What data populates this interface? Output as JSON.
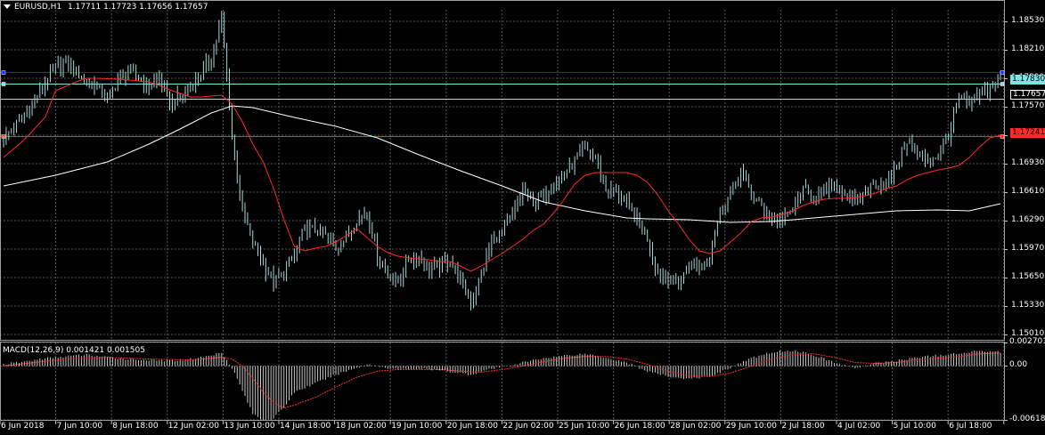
{
  "main_header": {
    "symbol": "EURUSD,H1",
    "quote": "1.17711 1.17723 1.17656 1.17657"
  },
  "macd_header": {
    "title": "MACD(12,26,9) 0.001421 0.001505"
  },
  "main_scale": [
    "1.18530",
    "1.18210",
    "1.17890",
    "1.17570",
    "1.17250",
    "1.16930",
    "1.16610",
    "1.16290",
    "1.15970",
    "1.15650",
    "1.15330",
    "1.15010"
  ],
  "macd_scale": [
    "0.002701",
    "0.00",
    "-0.006182"
  ],
  "price_badges": {
    "level_cyan": "1.17830",
    "current": "1.17657",
    "level_red": "1.17241"
  },
  "time_axis": [
    "6 Jun 2018",
    "7 Jun 10:00",
    "8 Jun 18:00",
    "12 Jun 02:00",
    "13 Jun 10:00",
    "14 Jun 18:00",
    "18 Jun 02:00",
    "19 Jun 10:00",
    "20 Jun 18:00",
    "22 Jun 02:00",
    "25 Jun 10:00",
    "26 Jun 18:00",
    "28 Jun 02:00",
    "29 Jun 10:00",
    "2 Jul 18:00",
    "4 Jul 02:00",
    "5 Jul 10:00",
    "6 Jul 18:00"
  ],
  "colors": {
    "background": "#000000",
    "grid": "#5a5a5a",
    "candles": "#a8d8d8",
    "ma_fast": "#ff2a2a",
    "ma_slow": "#ffffff",
    "line_blue": "#1e1eff",
    "line_cyan": "#7fe3e3",
    "line_red": "#ff2a2a",
    "macd_hist": "#c8c8c8",
    "macd_signal": "#ff3030"
  },
  "chart_data": {
    "type": "candlestick",
    "symbol": "EURUSD",
    "timeframe": "H1",
    "ylim": [
      1.1496,
      1.1866
    ],
    "close_path": [
      [
        0,
        1.1721
      ],
      [
        2,
        1.1746
      ],
      [
        3,
        1.1763
      ],
      [
        4,
        1.1784
      ],
      [
        5,
        1.18
      ],
      [
        6,
        1.1806
      ],
      [
        7,
        1.1797
      ],
      [
        8,
        1.1783
      ],
      [
        9,
        1.178
      ],
      [
        10,
        1.1764
      ],
      [
        11,
        1.1788
      ],
      [
        12,
        1.1796
      ],
      [
        13,
        1.179
      ],
      [
        14,
        1.1779
      ],
      [
        15,
        1.179
      ],
      [
        16,
        1.176
      ],
      [
        17,
        1.1768
      ],
      [
        18,
        1.1778
      ],
      [
        19,
        1.1795
      ],
      [
        20,
        1.1812
      ],
      [
        21,
        1.1855
      ],
      [
        22,
        1.1725
      ],
      [
        23,
        1.164
      ],
      [
        24,
        1.1605
      ],
      [
        25,
        1.158
      ],
      [
        26,
        1.156
      ],
      [
        27,
        1.157
      ],
      [
        28,
        1.159
      ],
      [
        29,
        1.162
      ],
      [
        30,
        1.1618
      ],
      [
        31,
        1.1612
      ],
      [
        32,
        1.1598
      ],
      [
        33,
        1.161
      ],
      [
        34,
        1.163
      ],
      [
        35,
        1.164
      ],
      [
        36,
        1.159
      ],
      [
        37,
        1.1568
      ],
      [
        38,
        1.156
      ],
      [
        39,
        1.1585
      ],
      [
        40,
        1.1588
      ],
      [
        41,
        1.1575
      ],
      [
        42,
        1.1578
      ],
      [
        43,
        1.1585
      ],
      [
        44,
        1.1562
      ],
      [
        45,
        1.1535
      ],
      [
        46,
        1.157
      ],
      [
        47,
        1.1605
      ],
      [
        48,
        1.1615
      ],
      [
        49,
        1.1635
      ],
      [
        50,
        1.1662
      ],
      [
        51,
        1.165
      ],
      [
        52,
        1.1655
      ],
      [
        53,
        1.1672
      ],
      [
        54,
        1.168
      ],
      [
        55,
        1.1695
      ],
      [
        56,
        1.171
      ],
      [
        57,
        1.17
      ],
      [
        58,
        1.1665
      ],
      [
        59,
        1.166
      ],
      [
        60,
        1.1648
      ],
      [
        61,
        1.163
      ],
      [
        62,
        1.161
      ],
      [
        63,
        1.157
      ],
      [
        64,
        1.1565
      ],
      [
        65,
        1.1555
      ],
      [
        66,
        1.158
      ],
      [
        67,
        1.1578
      ],
      [
        68,
        1.159
      ],
      [
        69,
        1.164
      ],
      [
        70,
        1.166
      ],
      [
        71,
        1.1685
      ],
      [
        72,
        1.166
      ],
      [
        73,
        1.1645
      ],
      [
        74,
        1.163
      ],
      [
        75,
        1.163
      ],
      [
        76,
        1.1643
      ],
      [
        77,
        1.1662
      ],
      [
        78,
        1.1657
      ],
      [
        79,
        1.166
      ],
      [
        80,
        1.167
      ],
      [
        81,
        1.166
      ],
      [
        82,
        1.1648
      ],
      [
        83,
        1.1662
      ],
      [
        84,
        1.1672
      ],
      [
        85,
        1.1668
      ],
      [
        86,
        1.169
      ],
      [
        87,
        1.172
      ],
      [
        88,
        1.1705
      ],
      [
        89,
        1.1695
      ],
      [
        90,
        1.1702
      ],
      [
        91,
        1.1725
      ],
      [
        92,
        1.1765
      ],
      [
        93,
        1.176
      ],
      [
        94,
        1.177
      ],
      [
        95,
        1.1778
      ],
      [
        96,
        1.179
      ]
    ],
    "ma_fast": [
      [
        0,
        1.17
      ],
      [
        2,
        1.172
      ],
      [
        4,
        1.1745
      ],
      [
        5,
        1.1775
      ],
      [
        7,
        1.1785
      ],
      [
        8,
        1.1789
      ],
      [
        9,
        1.1789
      ],
      [
        11,
        1.1788
      ],
      [
        12,
        1.1787
      ],
      [
        13,
        1.1786
      ],
      [
        14,
        1.1785
      ],
      [
        15,
        1.1781
      ],
      [
        16,
        1.1776
      ],
      [
        17,
        1.1772
      ],
      [
        18,
        1.1768
      ],
      [
        19,
        1.1768
      ],
      [
        20,
        1.1769
      ],
      [
        21,
        1.177
      ],
      [
        22,
        1.176
      ],
      [
        23,
        1.174
      ],
      [
        24,
        1.1715
      ],
      [
        25,
        1.1695
      ],
      [
        26,
        1.1665
      ],
      [
        27,
        1.163
      ],
      [
        28,
        1.16
      ],
      [
        29,
        1.1595
      ],
      [
        30,
        1.1598
      ],
      [
        31,
        1.16
      ],
      [
        32,
        1.1605
      ],
      [
        33,
        1.1612
      ],
      [
        34,
        1.162
      ],
      [
        35,
        1.161
      ],
      [
        36,
        1.16
      ],
      [
        37,
        1.1593
      ],
      [
        38,
        1.1589
      ],
      [
        39,
        1.1587
      ],
      [
        40,
        1.1586
      ],
      [
        41,
        1.1585
      ],
      [
        42,
        1.1583
      ],
      [
        43,
        1.1583
      ],
      [
        44,
        1.1578
      ],
      [
        45,
        1.1572
      ],
      [
        46,
        1.1578
      ],
      [
        47,
        1.1585
      ],
      [
        48,
        1.1592
      ],
      [
        49,
        1.16
      ],
      [
        50,
        1.1608
      ],
      [
        51,
        1.1618
      ],
      [
        52,
        1.1625
      ],
      [
        53,
        1.1638
      ],
      [
        54,
        1.1653
      ],
      [
        55,
        1.167
      ],
      [
        56,
        1.168
      ],
      [
        57,
        1.1683
      ],
      [
        58,
        1.1683
      ],
      [
        59,
        1.1683
      ],
      [
        60,
        1.1683
      ],
      [
        61,
        1.168
      ],
      [
        62,
        1.1672
      ],
      [
        63,
        1.1658
      ],
      [
        64,
        1.164
      ],
      [
        65,
        1.1625
      ],
      [
        66,
        1.1608
      ],
      [
        67,
        1.1595
      ],
      [
        68,
        1.1592
      ],
      [
        69,
        1.1595
      ],
      [
        70,
        1.1605
      ],
      [
        71,
        1.1615
      ],
      [
        72,
        1.1628
      ],
      [
        73,
        1.1632
      ],
      [
        74,
        1.1633
      ],
      [
        75,
        1.1636
      ],
      [
        76,
        1.164
      ],
      [
        77,
        1.1646
      ],
      [
        78,
        1.165
      ],
      [
        79,
        1.1653
      ],
      [
        80,
        1.1654
      ],
      [
        81,
        1.1654
      ],
      [
        82,
        1.1655
      ],
      [
        83,
        1.1657
      ],
      [
        84,
        1.166
      ],
      [
        85,
        1.1665
      ],
      [
        86,
        1.1668
      ],
      [
        87,
        1.1675
      ],
      [
        88,
        1.168
      ],
      [
        89,
        1.1683
      ],
      [
        90,
        1.1686
      ],
      [
        91,
        1.1688
      ],
      [
        92,
        1.1691
      ],
      [
        93,
        1.17
      ],
      [
        94,
        1.1712
      ],
      [
        95,
        1.1722
      ],
      [
        96,
        1.1725
      ]
    ],
    "ma_slow": [
      [
        0,
        1.1668
      ],
      [
        5,
        1.168
      ],
      [
        10,
        1.1695
      ],
      [
        14,
        1.1715
      ],
      [
        17,
        1.1732
      ],
      [
        20,
        1.175
      ],
      [
        22,
        1.1758
      ],
      [
        24,
        1.1756
      ],
      [
        28,
        1.1745
      ],
      [
        32,
        1.1735
      ],
      [
        36,
        1.1722
      ],
      [
        40,
        1.1703
      ],
      [
        44,
        1.1685
      ],
      [
        48,
        1.1668
      ],
      [
        52,
        1.165
      ],
      [
        56,
        1.164
      ],
      [
        60,
        1.1632
      ],
      [
        62,
        1.1631
      ],
      [
        66,
        1.163
      ],
      [
        70,
        1.1627
      ],
      [
        74,
        1.1628
      ],
      [
        78,
        1.1632
      ],
      [
        82,
        1.1636
      ],
      [
        86,
        1.164
      ],
      [
        90,
        1.1641
      ],
      [
        93,
        1.164
      ],
      [
        96,
        1.1648
      ]
    ],
    "horizontal_levels": [
      {
        "price": 1.1796,
        "color": "blue"
      },
      {
        "price": 1.1783,
        "color": "cyan"
      },
      {
        "price": 1.17657,
        "color": "white"
      },
      {
        "price": 1.17241,
        "color": "red"
      }
    ],
    "macd": {
      "ylim": [
        -0.006182,
        0.002701
      ],
      "histogram": [
        [
          0,
          0.0002
        ],
        [
          2,
          0.0005
        ],
        [
          4,
          0.0009
        ],
        [
          6,
          0.0011
        ],
        [
          8,
          0.0013
        ],
        [
          10,
          0.001
        ],
        [
          12,
          0.0008
        ],
        [
          14,
          0.0007
        ],
        [
          16,
          0.0006
        ],
        [
          18,
          0.0008
        ],
        [
          20,
          0.0012
        ],
        [
          21,
          0.0016
        ],
        [
          22,
          -0.0002
        ],
        [
          23,
          -0.0028
        ],
        [
          24,
          -0.0055
        ],
        [
          25,
          -0.0062
        ],
        [
          26,
          -0.006
        ],
        [
          27,
          -0.0048
        ],
        [
          28,
          -0.003
        ],
        [
          30,
          -0.002
        ],
        [
          32,
          -0.001
        ],
        [
          34,
          -0.0002
        ],
        [
          35,
          0.0002
        ],
        [
          37,
          -0.0002
        ],
        [
          38,
          -0.0004
        ],
        [
          40,
          -0.0003
        ],
        [
          42,
          -0.0005
        ],
        [
          44,
          -0.0008
        ],
        [
          45,
          -0.001
        ],
        [
          46,
          -0.0006
        ],
        [
          48,
          -0.0001
        ],
        [
          50,
          0.0004
        ],
        [
          52,
          0.0009
        ],
        [
          54,
          0.0012
        ],
        [
          56,
          0.0014
        ],
        [
          58,
          0.001
        ],
        [
          60,
          0.0004
        ],
        [
          62,
          -0.0006
        ],
        [
          64,
          -0.0012
        ],
        [
          66,
          -0.0015
        ],
        [
          68,
          -0.0012
        ],
        [
          70,
          -0.0002
        ],
        [
          72,
          0.0009
        ],
        [
          74,
          0.0016
        ],
        [
          76,
          0.0018
        ],
        [
          78,
          0.0013
        ],
        [
          80,
          0.0004
        ],
        [
          82,
          -0.0002
        ],
        [
          84,
          0.0003
        ],
        [
          86,
          0.0006
        ],
        [
          88,
          0.001
        ],
        [
          90,
          0.0012
        ],
        [
          92,
          0.0014
        ],
        [
          94,
          0.0018
        ],
        [
          96,
          0.0016
        ]
      ],
      "signal": [
        [
          0,
          0.0
        ],
        [
          3,
          0.0004
        ],
        [
          6,
          0.0008
        ],
        [
          10,
          0.001
        ],
        [
          14,
          0.0008
        ],
        [
          18,
          0.0007
        ],
        [
          21,
          0.001
        ],
        [
          22,
          0.0008
        ],
        [
          23,
          0.0
        ],
        [
          24,
          -0.0014
        ],
        [
          25,
          -0.003
        ],
        [
          26,
          -0.0042
        ],
        [
          27,
          -0.0048
        ],
        [
          28,
          -0.0045
        ],
        [
          30,
          -0.0036
        ],
        [
          32,
          -0.0024
        ],
        [
          34,
          -0.0013
        ],
        [
          36,
          -0.0006
        ],
        [
          38,
          -0.0004
        ],
        [
          40,
          -0.0004
        ],
        [
          42,
          -0.0004
        ],
        [
          44,
          -0.0006
        ],
        [
          46,
          -0.0007
        ],
        [
          48,
          -0.0004
        ],
        [
          50,
          0.0
        ],
        [
          52,
          0.0005
        ],
        [
          54,
          0.0009
        ],
        [
          56,
          0.0011
        ],
        [
          58,
          0.0011
        ],
        [
          60,
          0.0008
        ],
        [
          62,
          0.0002
        ],
        [
          64,
          -0.0006
        ],
        [
          66,
          -0.0011
        ],
        [
          68,
          -0.0012
        ],
        [
          70,
          -0.0008
        ],
        [
          72,
          0.0
        ],
        [
          74,
          0.0008
        ],
        [
          76,
          0.0013
        ],
        [
          78,
          0.0014
        ],
        [
          80,
          0.001
        ],
        [
          82,
          0.0004
        ],
        [
          84,
          0.0003
        ],
        [
          86,
          0.0004
        ],
        [
          88,
          0.0007
        ],
        [
          90,
          0.0009
        ],
        [
          92,
          0.0011
        ],
        [
          94,
          0.0014
        ],
        [
          96,
          0.0015
        ]
      ]
    }
  }
}
